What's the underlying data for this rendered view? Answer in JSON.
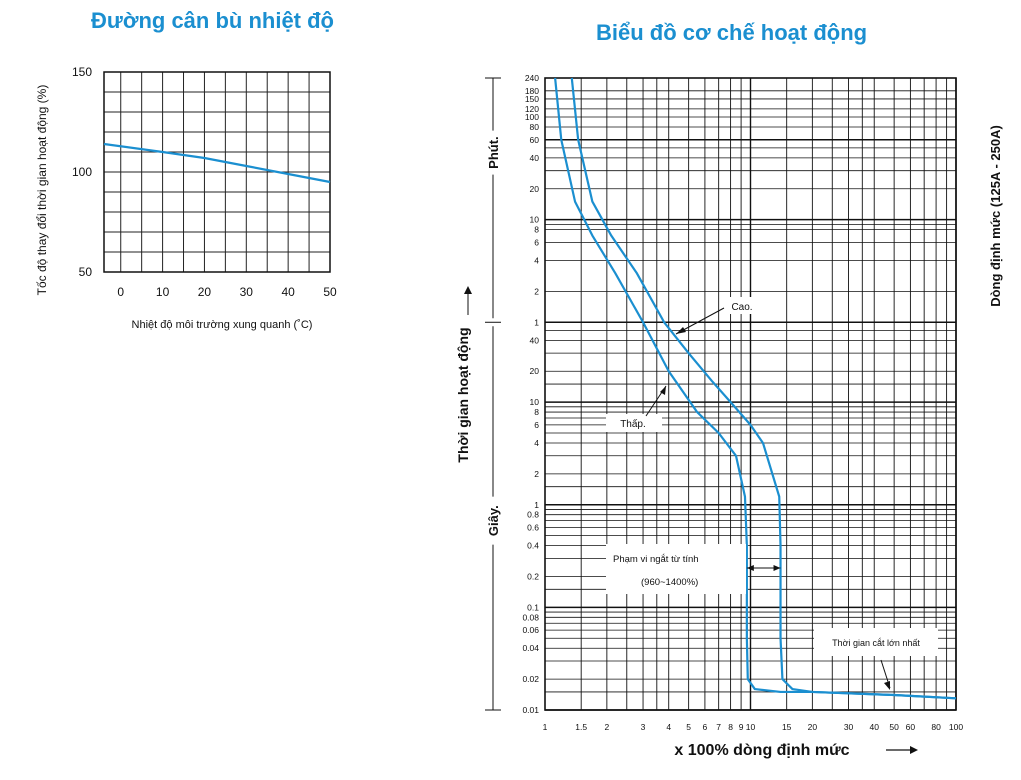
{
  "charts": {
    "comp_title": "Đường cân bù nhiệt độ",
    "op_title": "Biểu đồ cơ chế hoạt động"
  },
  "chart_data": [
    {
      "type": "line",
      "title": "Đường cân bù nhiệt độ",
      "xlabel": "Nhiệt độ môi trường xung quanh (˚C)",
      "ylabel": "Tốc độ thay đổi thời gian hoạt động (%)",
      "xlim": [
        -4,
        50
      ],
      "ylim": [
        50,
        150
      ],
      "x_ticks": [
        "0",
        "10",
        "20",
        "30",
        "40",
        "50"
      ],
      "y_ticks": [
        "150",
        "100",
        "50"
      ],
      "series": [
        {
          "x": [
            -4,
            10,
            20,
            30,
            40,
            50
          ],
          "y": [
            114,
            110,
            107,
            103,
            99,
            95
          ]
        }
      ],
      "grid": true,
      "line_color": "#1b8fd0"
    },
    {
      "type": "line",
      "title": "Biểu đồ cơ chế hoạt động",
      "xlabel": "x 100% dòng định mức",
      "ylabel": "Thời gian hoạt động",
      "right_label": "Dòng định mức (125A - 250A)",
      "x_scale": "log",
      "y_scale": "log",
      "xlim": [
        1,
        100
      ],
      "ylim_seconds": [
        0.01,
        14400
      ],
      "x_ticks": [
        "1",
        "1.5",
        "2",
        "3",
        "4",
        "5",
        "6",
        "7",
        "8",
        "9",
        "10",
        "15",
        "20",
        "30",
        "40",
        "50",
        "60",
        "80",
        "100"
      ],
      "y_ticks_seconds": [
        "0.01",
        "0.02",
        "0.04",
        "0.06",
        "0.08",
        "0.1",
        "0.2",
        "0.4",
        "0.6",
        "0.8",
        "1",
        "2",
        "4",
        "6",
        "8",
        "10",
        "20",
        "40"
      ],
      "y_ticks_minutes": [
        "1",
        "2",
        "4",
        "6",
        "8",
        "10",
        "20",
        "40",
        "60",
        "80",
        "100",
        "120",
        "150",
        "180",
        "240"
      ],
      "unit_labels": {
        "minutes": "Phút.",
        "seconds": "Giây."
      },
      "series": [
        {
          "name": "Thấp.",
          "x_times_rated": [
            1.12,
            1.2,
            1.4,
            1.7,
            2.2,
            3.0,
            4.0,
            5.5,
            7.0,
            8.5,
            9.4,
            9.6,
            9.6,
            9.7,
            10.5,
            14,
            20,
            50,
            100
          ],
          "time_seconds": [
            14400,
            3600,
            900,
            420,
            180,
            60,
            20,
            8,
            5,
            3,
            1.2,
            0.4,
            0.05,
            0.02,
            0.016,
            0.015,
            0.015,
            0.014,
            0.013
          ]
        },
        {
          "name": "Cao.",
          "x_times_rated": [
            1.35,
            1.45,
            1.7,
            2.1,
            2.8,
            3.8,
            5.0,
            6.5,
            8.0,
            10.0,
            11.5,
            13.8,
            14,
            14,
            14.3,
            16,
            20,
            50,
            100
          ],
          "time_seconds": [
            14400,
            3600,
            900,
            420,
            180,
            60,
            30,
            16,
            10,
            6,
            4,
            1.2,
            0.4,
            0.05,
            0.02,
            0.016,
            0.015,
            0.014,
            0.013
          ]
        }
      ],
      "annotations": {
        "high": "Cao.",
        "low": "Thấp.",
        "magnetic_range_title": "Phạm vi ngắt từ tính",
        "magnetic_range_value": "(960~1400%)",
        "max_break_time": "Thời gian cắt lớn nhất"
      },
      "grid": true,
      "line_color": "#1b8fd0"
    }
  ]
}
